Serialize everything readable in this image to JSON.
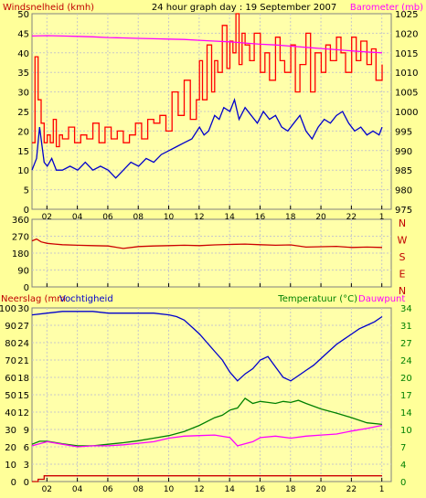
{
  "chart_data": [
    {
      "type": "line",
      "title": "24 hour graph day : 19 September 2007",
      "ylabel_left": "Windsnelheid (kmh)",
      "ylabel_right": "Barometer (mb)",
      "x_ticks": [
        "02",
        "04",
        "06",
        "08",
        "10",
        "12",
        "14",
        "16",
        "18",
        "20",
        "22",
        "1"
      ],
      "left_axis": {
        "ticks": [
          "0",
          "5",
          "10",
          "15",
          "20",
          "25",
          "30",
          "35",
          "40",
          "45",
          "50"
        ],
        "range": [
          0,
          50
        ]
      },
      "right_axis": {
        "ticks": [
          "975",
          "980",
          "985",
          "990",
          "995",
          "1000",
          "1005",
          "1010",
          "1015",
          "1020",
          "1025"
        ],
        "range": [
          975,
          1025
        ]
      },
      "grid": true,
      "series": [
        {
          "color": "#ff0000",
          "axis": "left",
          "step": true,
          "x": [
            0.0,
            0.2,
            0.4,
            0.6,
            0.8,
            1.0,
            1.2,
            1.4,
            1.6,
            1.8,
            2.0,
            2.4,
            2.8,
            3.2,
            3.6,
            4.0,
            4.4,
            4.8,
            5.2,
            5.6,
            6.0,
            6.4,
            6.8,
            7.2,
            7.6,
            8.0,
            8.4,
            8.8,
            9.2,
            9.6,
            10.0,
            10.4,
            10.8,
            11.0,
            11.2,
            11.5,
            11.8,
            12.0,
            12.2,
            12.5,
            12.8,
            13.0,
            13.2,
            13.4,
            13.6,
            13.8,
            14.0,
            14.3,
            14.6,
            15.0,
            15.3,
            15.6,
            16.0,
            16.3,
            16.6,
            17.0,
            17.3,
            17.6,
            18.0,
            18.3,
            18.6,
            19.0,
            19.3,
            19.6,
            20.0,
            20.3,
            20.6,
            21.0,
            21.3,
            21.6,
            22.0,
            22.3,
            22.6,
            23.0
          ],
          "y": [
            17,
            39,
            28,
            22,
            17,
            19,
            17,
            23,
            16,
            19,
            18,
            21,
            17,
            19,
            18,
            22,
            17,
            21,
            18,
            20,
            17,
            19,
            22,
            18,
            23,
            22,
            24,
            20,
            30,
            24,
            33,
            23,
            28,
            38,
            28,
            42,
            30,
            38,
            35,
            47,
            36,
            43,
            40,
            50,
            37,
            45,
            42,
            38,
            45,
            35,
            40,
            33,
            44,
            38,
            35,
            42,
            30,
            37,
            45,
            30,
            40,
            35,
            42,
            38,
            44,
            40,
            35,
            44,
            38,
            43,
            37,
            41,
            33,
            37
          ]
        },
        {
          "color": "#0000cc",
          "axis": "left",
          "x": [
            0.0,
            0.3,
            0.5,
            0.8,
            1.0,
            1.3,
            1.6,
            2.0,
            2.5,
            3.0,
            3.5,
            4.0,
            4.5,
            5.0,
            5.5,
            6.0,
            6.5,
            7.0,
            7.5,
            8.0,
            8.5,
            9.0,
            9.5,
            10.0,
            10.5,
            11.0,
            11.3,
            11.6,
            12.0,
            12.3,
            12.6,
            13.0,
            13.3,
            13.6,
            14.0,
            14.4,
            14.8,
            15.2,
            15.6,
            16.0,
            16.4,
            16.8,
            17.2,
            17.6,
            18.0,
            18.4,
            18.8,
            19.2,
            19.6,
            20.0,
            20.4,
            20.8,
            21.2,
            21.6,
            22.0,
            22.4,
            22.8,
            23.0
          ],
          "y": [
            10,
            13,
            21,
            12,
            11,
            13,
            10,
            10,
            11,
            10,
            12,
            10,
            11,
            10,
            8,
            10,
            12,
            11,
            13,
            12,
            14,
            15,
            16,
            17,
            18,
            21,
            19,
            20,
            24,
            23,
            26,
            25,
            28,
            23,
            26,
            24,
            22,
            25,
            23,
            24,
            21,
            20,
            22,
            24,
            20,
            18,
            21,
            23,
            22,
            24,
            25,
            22,
            20,
            21,
            19,
            20,
            19,
            21
          ]
        },
        {
          "color": "#ff00ff",
          "axis": "right",
          "x": [
            0.0,
            1.0,
            2.0,
            3.0,
            4.0,
            5.0,
            6.0,
            7.0,
            8.0,
            9.0,
            10.0,
            11.0,
            12.0,
            13.0,
            14.0,
            15.0,
            16.0,
            17.0,
            18.0,
            19.0,
            20.0,
            21.0,
            22.0,
            23.0
          ],
          "y": [
            1019.3,
            1019.4,
            1019.3,
            1019.2,
            1019.1,
            1018.9,
            1018.8,
            1018.7,
            1018.6,
            1018.5,
            1018.4,
            1018.2,
            1018.0,
            1017.8,
            1017.5,
            1017.2,
            1017.0,
            1016.7,
            1016.4,
            1016.1,
            1015.8,
            1015.5,
            1015.2,
            1015.0
          ]
        }
      ]
    },
    {
      "type": "line",
      "ylabel_right": [
        "N",
        "W",
        "S",
        "E",
        "N"
      ],
      "left_axis": {
        "ticks": [
          "0",
          "90",
          "180",
          "270",
          "360"
        ],
        "range": [
          0,
          360
        ]
      },
      "grid": true,
      "series": [
        {
          "color": "#cc0000",
          "axis": "left",
          "x": [
            0.0,
            0.3,
            0.6,
            1.0,
            1.5,
            2.0,
            3.0,
            4.0,
            5.0,
            6.0,
            7.0,
            8.0,
            9.0,
            10.0,
            11.0,
            12.0,
            13.0,
            14.0,
            15.0,
            16.0,
            17.0,
            18.0,
            19.0,
            20.0,
            21.0,
            22.0,
            23.0
          ],
          "y": [
            245,
            255,
            240,
            232,
            228,
            225,
            222,
            220,
            218,
            205,
            215,
            218,
            220,
            222,
            220,
            224,
            226,
            228,
            225,
            222,
            224,
            212,
            214,
            216,
            210,
            212,
            210
          ]
        }
      ]
    },
    {
      "type": "line",
      "ylabel_left": "Neerslag (mm",
      "ylabel_left_2": "Vochtigheid",
      "ylabel_right": "Temperatuur (°C)",
      "ylabel_right_2": "Dauwpunt",
      "x_ticks": [
        "02",
        "04",
        "06",
        "08",
        "10",
        "12",
        "14",
        "16",
        "18",
        "20",
        "22",
        "1"
      ],
      "outer_left_axis": {
        "ticks": [
          "0",
          "10",
          "20",
          "30",
          "40",
          "50",
          "60",
          "70",
          "80",
          "90",
          "100"
        ],
        "range": [
          0,
          100
        ]
      },
      "inner_left_axis": {
        "ticks": [
          "0",
          "3",
          "6",
          "9",
          "12",
          "15",
          "18",
          "21",
          "24",
          "27",
          "30"
        ],
        "range": [
          0,
          30
        ]
      },
      "right_axis": {
        "ticks": [
          "0",
          "4",
          "7",
          "10",
          "14",
          "17",
          "20",
          "24",
          "27",
          "31",
          "34"
        ],
        "range": [
          0,
          34
        ]
      },
      "grid": true,
      "series": [
        {
          "color": "#0000cc",
          "axis": "outer_left",
          "x": [
            0.0,
            1.0,
            2.0,
            3.0,
            4.0,
            5.0,
            6.0,
            7.0,
            8.0,
            9.0,
            9.5,
            10.0,
            10.5,
            11.0,
            11.5,
            12.0,
            12.5,
            13.0,
            13.5,
            14.0,
            14.5,
            15.0,
            15.5,
            16.0,
            16.5,
            17.0,
            17.5,
            18.0,
            18.5,
            19.0,
            19.5,
            20.0,
            20.5,
            21.0,
            21.5,
            22.0,
            22.5,
            23.0
          ],
          "y": [
            96,
            97,
            98,
            98,
            98,
            97,
            97,
            97,
            97,
            96,
            95,
            93,
            89,
            85,
            80,
            75,
            70,
            63,
            58,
            62,
            65,
            70,
            72,
            66,
            60,
            58,
            61,
            64,
            67,
            71,
            75,
            79,
            82,
            85,
            88,
            90,
            92,
            95
          ]
        },
        {
          "color": "#008000",
          "axis": "right",
          "x": [
            0.0,
            0.5,
            1.0,
            2.0,
            3.0,
            4.0,
            5.0,
            6.0,
            7.0,
            8.0,
            9.0,
            10.0,
            11.0,
            12.0,
            12.5,
            13.0,
            13.5,
            14.0,
            14.5,
            15.0,
            15.5,
            16.0,
            16.5,
            17.0,
            17.5,
            18.0,
            19.0,
            20.0,
            21.0,
            22.0,
            23.0
          ],
          "y": [
            7.3,
            7.9,
            7.9,
            7.4,
            7.0,
            7.0,
            7.3,
            7.6,
            8.0,
            8.5,
            9.0,
            9.8,
            11.0,
            12.5,
            13.0,
            14.0,
            14.4,
            16.3,
            15.3,
            15.7,
            15.5,
            15.3,
            15.7,
            15.5,
            15.9,
            15.3,
            14.2,
            13.4,
            12.5,
            11.5,
            11.2
          ]
        },
        {
          "color": "#ff00ff",
          "axis": "right",
          "x": [
            0.0,
            1.0,
            2.0,
            3.0,
            4.0,
            5.0,
            6.0,
            7.0,
            8.0,
            9.0,
            10.0,
            11.0,
            12.0,
            13.0,
            13.5,
            14.0,
            14.5,
            15.0,
            16.0,
            17.0,
            18.0,
            19.0,
            20.0,
            21.0,
            22.0,
            23.0
          ],
          "y": [
            7.0,
            7.8,
            7.3,
            6.8,
            7.0,
            7.0,
            7.2,
            7.5,
            7.8,
            8.5,
            8.9,
            9.0,
            9.1,
            8.6,
            7.0,
            7.4,
            7.8,
            8.6,
            8.9,
            8.5,
            8.9,
            9.1,
            9.3,
            9.9,
            10.4,
            11.0
          ]
        },
        {
          "color": "#cc0000",
          "axis": "inner_left",
          "step": true,
          "x": [
            0.0,
            0.4,
            0.8,
            23.0
          ],
          "y": [
            0.0,
            0.4,
            1.0,
            1.0
          ]
        }
      ]
    }
  ]
}
